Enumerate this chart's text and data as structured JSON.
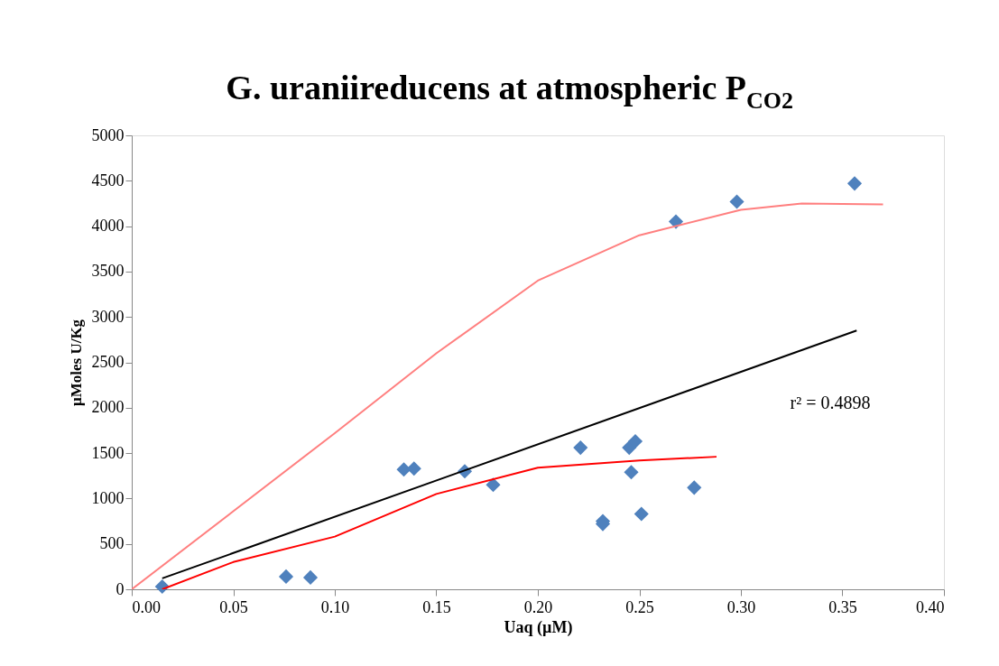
{
  "chart_data": {
    "type": "scatter",
    "title": "G. uraniireducens at atmospheric P$_{CO2}$",
    "xlabel": "Uaq (µM)",
    "ylabel": "µMoles U/Kg",
    "xlim": [
      0,
      0.4
    ],
    "ylim": [
      0,
      5000
    ],
    "xticks": [
      {
        "value": 0,
        "label": "0.00"
      },
      {
        "value": 0.05,
        "label": "0.05"
      },
      {
        "value": 0.1,
        "label": "0.10"
      },
      {
        "value": 0.15,
        "label": "0.15"
      },
      {
        "value": 0.2,
        "label": "0.20"
      },
      {
        "value": 0.25,
        "label": "0.25"
      },
      {
        "value": 0.3,
        "label": "0.30"
      },
      {
        "value": 0.35,
        "label": "0.35"
      },
      {
        "value": 0.4,
        "label": "0.40"
      }
    ],
    "yticks": [
      0,
      500,
      1000,
      1500,
      2000,
      2500,
      3000,
      3500,
      4000,
      4500,
      5000
    ],
    "grid": false,
    "marker": "diamond",
    "annotations": [
      "r² = 0.4898"
    ],
    "series": [
      {
        "color": "#4f81bd",
        "x": [
          0.015,
          0.076,
          0.088,
          0.134,
          0.139,
          0.164,
          0.178,
          0.221,
          0.232,
          0.232,
          0.245,
          0.248,
          0.246,
          0.251,
          0.277,
          0.268,
          0.298,
          0.356
        ],
        "values": [
          30,
          140,
          130,
          1320,
          1330,
          1300,
          1150,
          1560,
          750,
          720,
          1560,
          1630,
          1290,
          830,
          1120,
          4050,
          4270,
          4470
        ]
      },
      {
        "type": "line",
        "color": "#ff7f7f",
        "marker": "none",
        "line_style": "solid",
        "x": [
          0.0,
          0.05,
          0.1,
          0.15,
          0.2,
          0.25,
          0.3,
          0.33,
          0.37
        ],
        "values": [
          0,
          860,
          1720,
          2600,
          3400,
          3900,
          4180,
          4250,
          4240
        ]
      },
      {
        "type": "line",
        "color": "#000000",
        "marker": "none",
        "line_style": "solid",
        "x": [
          0.015,
          0.357
        ],
        "values": [
          120,
          2850
        ]
      },
      {
        "type": "line",
        "color": "#ff0000",
        "marker": "none",
        "line_style": "solid",
        "x": [
          0.015,
          0.05,
          0.1,
          0.15,
          0.2,
          0.25,
          0.288
        ],
        "values": [
          0,
          300,
          580,
          1050,
          1340,
          1420,
          1460
        ]
      }
    ]
  }
}
